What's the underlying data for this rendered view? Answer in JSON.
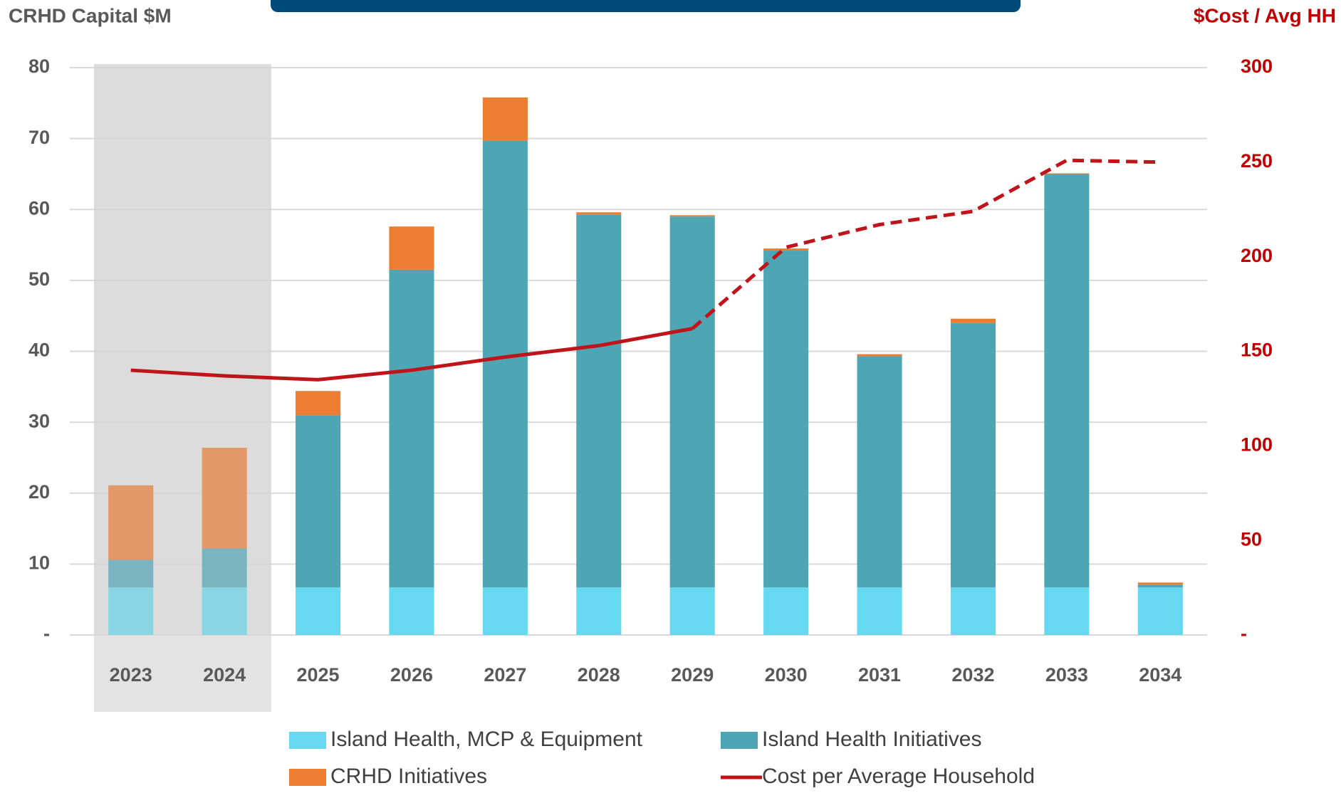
{
  "chart_data": {
    "type": "bar",
    "y_axis_label": "CRHD Capital $M",
    "y2_axis_label": "$Cost / Avg HH",
    "categories": [
      "2023",
      "2024",
      "2025",
      "2026",
      "2027",
      "2028",
      "2029",
      "2030",
      "2031",
      "2032",
      "2033",
      "2034"
    ],
    "series": [
      {
        "name": "Island Health, MCP & Equipment",
        "color": "#66d9f0",
        "values": [
          6.7,
          6.7,
          6.7,
          6.7,
          6.7,
          6.7,
          6.7,
          6.7,
          6.7,
          6.7,
          6.7,
          6.7
        ]
      },
      {
        "name": "Island Health Initiatives",
        "color": "#4ea6b5",
        "values": [
          3.9,
          5.5,
          24.3,
          44.8,
          63.0,
          52.6,
          52.3,
          47.5,
          32.6,
          37.3,
          58.3,
          0.4
        ]
      },
      {
        "name": "CRHD Initiatives",
        "color": "#ed7d31",
        "values": [
          10.5,
          14.2,
          3.4,
          6.1,
          6.1,
          0.3,
          0.2,
          0.3,
          0.3,
          0.6,
          0.1,
          0.3
        ]
      },
      {
        "name": "Cost per Average Household",
        "color": "#c0141b",
        "type": "line",
        "axis": "y2",
        "dash_from": 6,
        "values": [
          140,
          137,
          135,
          140,
          147,
          153,
          162,
          205,
          217,
          224,
          251,
          250
        ]
      }
    ],
    "ylim": [
      0,
      80
    ],
    "yticks": [
      {
        "value": 0,
        "label": "-"
      },
      10,
      20,
      30,
      40,
      50,
      60,
      70,
      80
    ],
    "y2lim": [
      0,
      300
    ],
    "y2ticks": [
      {
        "value": 0,
        "label": "-"
      },
      50,
      100,
      150,
      200,
      250,
      300
    ],
    "grid": true,
    "shaded": [
      0,
      1
    ]
  }
}
